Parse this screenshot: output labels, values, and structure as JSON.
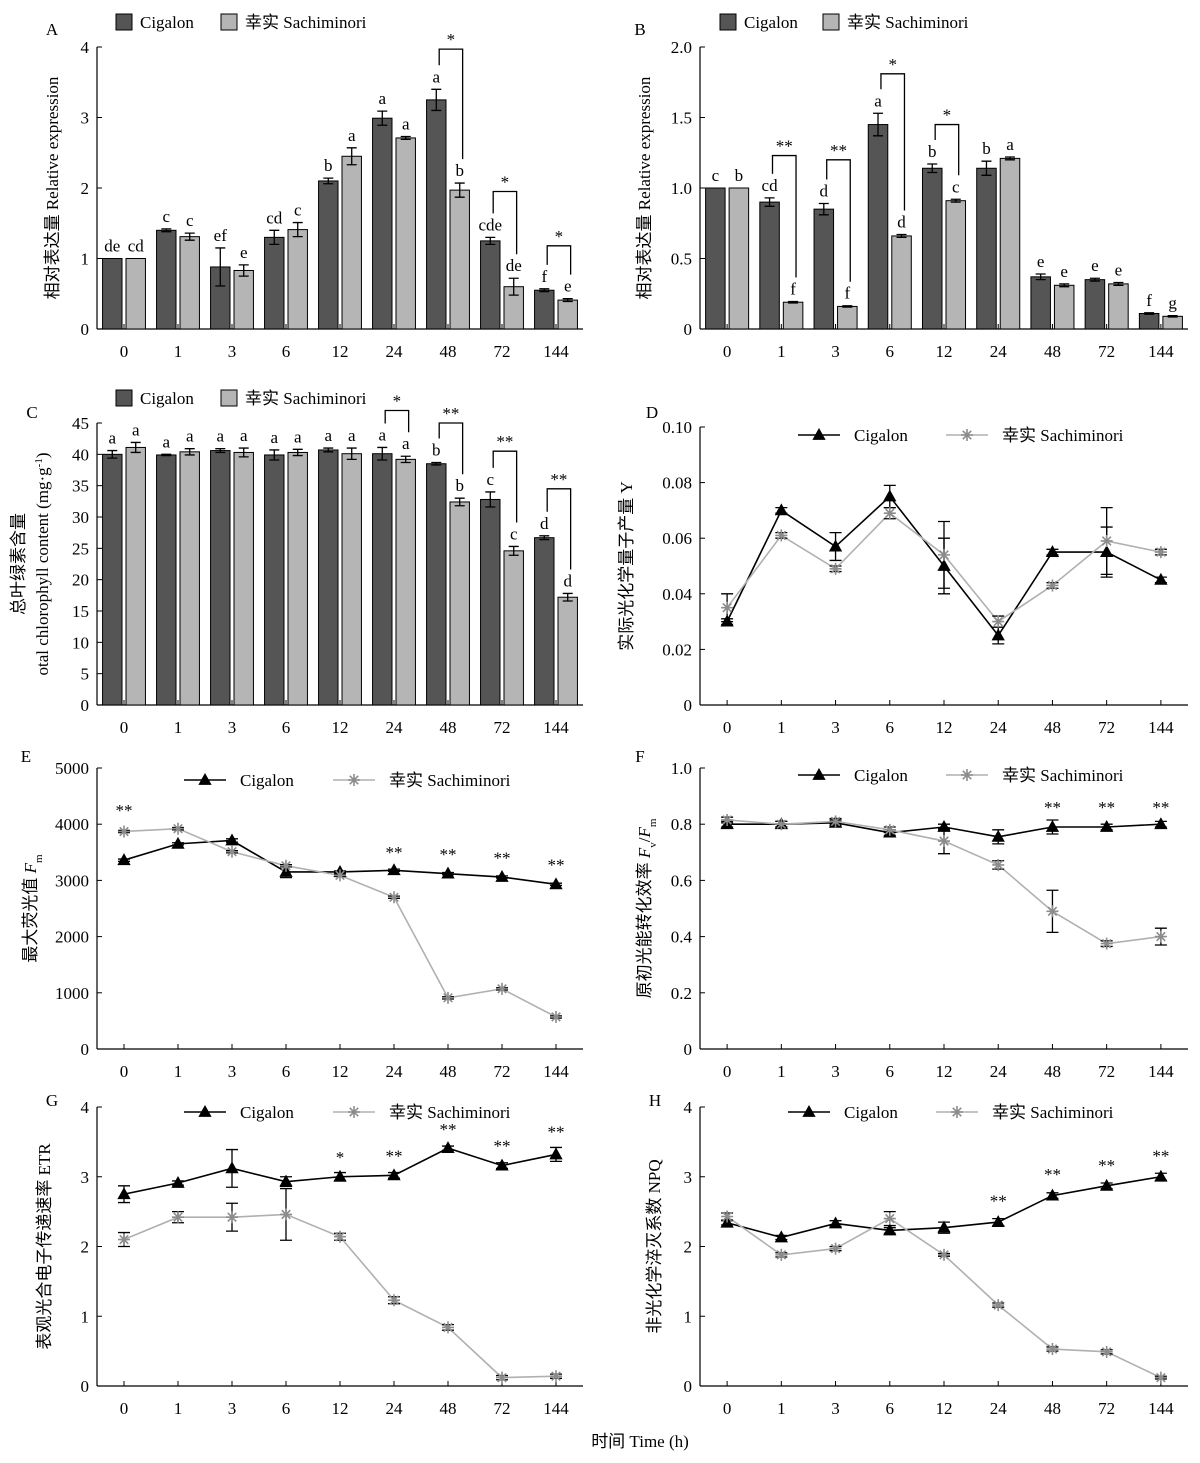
{
  "figure": {
    "xlabel": "时间 Time (h)",
    "colors": {
      "cigalon": "#555555",
      "sachiminori": "#b5b5b5",
      "line_cigalon": "#000000",
      "line_sachiminori": "#8c8c8c"
    }
  },
  "chart_data": [
    {
      "panel": "A",
      "type": "bar",
      "categories": [
        "0",
        "1",
        "3",
        "6",
        "12",
        "24",
        "48",
        "72",
        "144"
      ],
      "ylabel": "相对表达量 Relative expression",
      "ylim": [
        0,
        4
      ],
      "yticks": [
        "0",
        "1",
        "2",
        "3",
        "4"
      ],
      "legend": [
        "Cigalon",
        "幸实 Sachiminori"
      ],
      "series": [
        {
          "name": "Cigalon",
          "values": [
            1.0,
            1.4,
            0.88,
            1.3,
            2.1,
            2.99,
            3.25,
            1.25,
            0.55
          ],
          "errors": [
            0,
            0.02,
            0.27,
            0.1,
            0.04,
            0.1,
            0.15,
            0.05,
            0.02
          ],
          "labels": [
            "de",
            "c",
            "ef",
            "cd",
            "b",
            "a",
            "a",
            "cde",
            "f"
          ]
        },
        {
          "name": "幸实 Sachiminori",
          "values": [
            1.0,
            1.31,
            0.83,
            1.41,
            2.45,
            2.71,
            1.97,
            0.6,
            0.41
          ],
          "errors": [
            0,
            0.05,
            0.08,
            0.1,
            0.12,
            0.02,
            0.1,
            0.12,
            0.02
          ],
          "labels": [
            "cd",
            "c",
            "e",
            "c",
            "a",
            "a",
            "b",
            "de",
            "e"
          ]
        }
      ],
      "significance": [
        {
          "x": "48",
          "label": "*",
          "top": 3.97
        },
        {
          "x": "72",
          "label": "*",
          "top": 1.95
        },
        {
          "x": "144",
          "label": "*",
          "top": 1.18
        }
      ]
    },
    {
      "panel": "B",
      "type": "bar",
      "categories": [
        "0",
        "1",
        "3",
        "6",
        "12",
        "24",
        "48",
        "72",
        "144"
      ],
      "ylabel": "相对表达量 Relative expression",
      "ylim": [
        0,
        2
      ],
      "yticks": [
        "0",
        "0.5",
        "1.0",
        "1.5",
        "2.0"
      ],
      "legend": [
        "Cigalon",
        "幸实 Sachiminori"
      ],
      "series": [
        {
          "name": "Cigalon",
          "values": [
            1.0,
            0.9,
            0.85,
            1.45,
            1.14,
            1.14,
            0.37,
            0.35,
            0.11
          ],
          "errors": [
            0,
            0.03,
            0.04,
            0.08,
            0.03,
            0.05,
            0.02,
            0.01,
            0.005
          ],
          "labels": [
            "c",
            "cd",
            "d",
            "a",
            "b",
            "b",
            "e",
            "e",
            "f"
          ]
        },
        {
          "name": "幸实 Sachiminori",
          "values": [
            1.0,
            0.19,
            0.16,
            0.66,
            0.91,
            1.21,
            0.31,
            0.32,
            0.09
          ],
          "errors": [
            0,
            0.005,
            0.005,
            0.01,
            0.01,
            0.01,
            0.01,
            0.01,
            0.005
          ],
          "labels": [
            "b",
            "f",
            "f",
            "d",
            "c",
            "a",
            "e",
            "e",
            "g"
          ]
        }
      ],
      "significance": [
        {
          "x": "1",
          "label": "**",
          "top": 1.23
        },
        {
          "x": "3",
          "label": "**",
          "top": 1.2
        },
        {
          "x": "6",
          "label": "*",
          "top": 1.81
        },
        {
          "x": "12",
          "label": "*",
          "top": 1.45
        }
      ]
    },
    {
      "panel": "C",
      "type": "bar",
      "categories": [
        "0",
        "1",
        "3",
        "6",
        "12",
        "24",
        "48",
        "72",
        "144"
      ],
      "ylabel": "总叶绿素含量",
      "ylabel2": "otal chlorophyll content (mg·g",
      "ylabel2_sup": "-1",
      "ylabel2_end": ")",
      "ylim": [
        0,
        45
      ],
      "yticks": [
        "0",
        "5",
        "10",
        "15",
        "20",
        "25",
        "30",
        "35",
        "40",
        "45"
      ],
      "legend": [
        "Cigalon",
        "幸实 Sachiminori"
      ],
      "series": [
        {
          "name": "Cigalon",
          "values": [
            40.0,
            39.9,
            40.6,
            39.9,
            40.7,
            40.1,
            38.5,
            32.8,
            26.7
          ],
          "errors": [
            0.6,
            0.1,
            0.3,
            0.8,
            0.3,
            1.0,
            0.2,
            1.2,
            0.3
          ],
          "labels": [
            "a",
            "a",
            "a",
            "a",
            "a",
            "a",
            "b",
            "c",
            "d"
          ]
        },
        {
          "name": "幸实 Sachiminori",
          "values": [
            41.1,
            40.4,
            40.3,
            40.3,
            40.1,
            39.2,
            32.4,
            24.6,
            17.2
          ],
          "errors": [
            0.8,
            0.5,
            0.7,
            0.5,
            0.9,
            0.5,
            0.6,
            0.7,
            0.6
          ],
          "labels": [
            "a",
            "a",
            "a",
            "a",
            "a",
            "a",
            "b",
            "c",
            "d"
          ]
        }
      ],
      "significance": [
        {
          "x": "24",
          "label": "*",
          "top": 47.0
        },
        {
          "x": "48",
          "label": "**",
          "top": 45.0
        },
        {
          "x": "72",
          "label": "**",
          "top": 40.5
        },
        {
          "x": "144",
          "label": "**",
          "top": 34.5
        }
      ]
    },
    {
      "panel": "D",
      "type": "line",
      "categories": [
        "0",
        "1",
        "3",
        "6",
        "12",
        "24",
        "48",
        "72",
        "144"
      ],
      "ylabel": "实际光化学量子产量 Y",
      "ylim": [
        0,
        0.1
      ],
      "yticks": [
        "0",
        "0.02",
        "0.04",
        "0.06",
        "0.08",
        "0.10"
      ],
      "legend": [
        "Cigalon",
        "幸实 Sachiminori"
      ],
      "series": [
        {
          "name": "Cigalon",
          "values": [
            0.03,
            0.07,
            0.057,
            0.075,
            0.05,
            0.025,
            0.055,
            0.055,
            0.045
          ],
          "errors": [
            0.001,
            0.001,
            0.005,
            0.004,
            0.01,
            0.003,
            0.001,
            0.009,
            0.001
          ]
        },
        {
          "name": "幸实 Sachiminori",
          "values": [
            0.035,
            0.061,
            0.049,
            0.069,
            0.054,
            0.03,
            0.043,
            0.059,
            0.055
          ],
          "errors": [
            0.005,
            0.001,
            0.001,
            0.002,
            0.012,
            0.002,
            0.001,
            0.012,
            0.001
          ]
        }
      ],
      "significance": []
    },
    {
      "panel": "E",
      "type": "line",
      "categories": [
        "0",
        "1",
        "3",
        "6",
        "12",
        "24",
        "48",
        "72",
        "144"
      ],
      "ylabel": "最大荧光值",
      "ylabel_var": "F",
      "ylabel_sub": "m",
      "ylim": [
        0,
        5000
      ],
      "yticks": [
        "0",
        "1000",
        "2000",
        "3000",
        "4000",
        "5000"
      ],
      "legend": [
        "Cigalon",
        "幸实 Sachiminori"
      ],
      "series": [
        {
          "name": "Cigalon",
          "values": [
            3360,
            3650,
            3710,
            3150,
            3150,
            3180,
            3120,
            3060,
            2930
          ],
          "errors": [
            20,
            20,
            30,
            100,
            20,
            20,
            20,
            20,
            20
          ]
        },
        {
          "name": "幸实 Sachiminori",
          "values": [
            3870,
            3920,
            3510,
            3260,
            3090,
            2700,
            910,
            1070,
            570
          ],
          "errors": [
            20,
            20,
            20,
            20,
            20,
            20,
            20,
            20,
            20
          ]
        }
      ],
      "significance": [
        {
          "x": "0",
          "label": "**",
          "above": 4150
        },
        {
          "x": "24",
          "label": "**",
          "above": 3400
        },
        {
          "x": "48",
          "label": "**",
          "above": 3360
        },
        {
          "x": "72",
          "label": "**",
          "above": 3300
        },
        {
          "x": "144",
          "label": "**",
          "above": 3180
        }
      ]
    },
    {
      "panel": "F",
      "type": "line",
      "categories": [
        "0",
        "1",
        "3",
        "6",
        "12",
        "24",
        "48",
        "72",
        "144"
      ],
      "ylabel": "原初光能转化效率",
      "ylabel_var": "F",
      "ylabel_sub": "v",
      "ylabel_var2": "F",
      "ylabel_sub2": "m",
      "ylim": [
        0,
        1
      ],
      "yticks": [
        "0",
        "0.2",
        "0.4",
        "0.6",
        "0.8",
        "1.0"
      ],
      "legend": [
        "Cigalon",
        "幸实 Sachiminori"
      ],
      "series": [
        {
          "name": "Cigalon",
          "values": [
            0.8,
            0.8,
            0.805,
            0.77,
            0.79,
            0.755,
            0.79,
            0.79,
            0.8
          ],
          "errors": [
            0.01,
            0.01,
            0.01,
            0.01,
            0.01,
            0.025,
            0.025,
            0.01,
            0.01
          ]
        },
        {
          "name": "幸实 Sachiminori",
          "values": [
            0.815,
            0.8,
            0.81,
            0.78,
            0.74,
            0.655,
            0.49,
            0.375,
            0.4
          ],
          "errors": [
            0.01,
            0.01,
            0.01,
            0.01,
            0.045,
            0.015,
            0.075,
            0.01,
            0.03
          ]
        }
      ],
      "significance": [
        {
          "x": "48",
          "label": "**",
          "above": 0.84
        },
        {
          "x": "72",
          "label": "**",
          "above": 0.84
        },
        {
          "x": "144",
          "label": "**",
          "above": 0.84
        }
      ]
    },
    {
      "panel": "G",
      "type": "line",
      "categories": [
        "0",
        "1",
        "3",
        "6",
        "12",
        "24",
        "48",
        "72",
        "144"
      ],
      "ylabel": "表观光合电子传递速率 ETR",
      "ylim": [
        0,
        4
      ],
      "yticks": [
        "0",
        "1",
        "2",
        "3",
        "4"
      ],
      "legend": [
        "Cigalon",
        "幸实 Sachiminori"
      ],
      "series": [
        {
          "name": "Cigalon",
          "values": [
            2.75,
            2.91,
            3.12,
            2.93,
            3.0,
            3.02,
            3.41,
            3.16,
            3.32
          ],
          "errors": [
            0.12,
            0.03,
            0.27,
            0.07,
            0.06,
            0.04,
            0.03,
            0.04,
            0.1
          ]
        },
        {
          "name": "幸实 Sachiminori",
          "values": [
            2.1,
            2.42,
            2.42,
            2.46,
            2.14,
            1.23,
            0.84,
            0.12,
            0.14
          ],
          "errors": [
            0.1,
            0.08,
            0.2,
            0.37,
            0.05,
            0.05,
            0.04,
            0.03,
            0.03
          ]
        }
      ],
      "significance": [
        {
          "x": "12",
          "label": "*",
          "above": 3.2
        },
        {
          "x": "24",
          "label": "**",
          "above": 3.22
        },
        {
          "x": "48",
          "label": "**",
          "above": 3.6
        },
        {
          "x": "72",
          "label": "**",
          "above": 3.36
        },
        {
          "x": "144",
          "label": "**",
          "above": 3.56
        }
      ]
    },
    {
      "panel": "H",
      "type": "line",
      "categories": [
        "0",
        "1",
        "3",
        "6",
        "12",
        "24",
        "48",
        "72",
        "144"
      ],
      "ylabel": "非光化学淬灭系数 NPQ",
      "ylim": [
        0,
        4
      ],
      "yticks": [
        "0",
        "1",
        "2",
        "3",
        "4"
      ],
      "legend": [
        "Cigalon",
        "幸实 Sachiminori"
      ],
      "series": [
        {
          "name": "Cigalon",
          "values": [
            2.34,
            2.13,
            2.33,
            2.23,
            2.27,
            2.35,
            2.73,
            2.87,
            3.0
          ],
          "errors": [
            0.03,
            0.03,
            0.04,
            0.04,
            0.08,
            0.05,
            0.04,
            0.04,
            0.05
          ]
        },
        {
          "name": "幸实 Sachiminori",
          "values": [
            2.43,
            1.88,
            1.97,
            2.4,
            1.88,
            1.16,
            0.53,
            0.49,
            0.12
          ],
          "errors": [
            0.05,
            0.03,
            0.03,
            0.1,
            0.02,
            0.03,
            0.03,
            0.03,
            0.02
          ]
        }
      ],
      "significance": [
        {
          "x": "24",
          "label": "**",
          "above": 2.57
        },
        {
          "x": "48",
          "label": "**",
          "above": 2.95
        },
        {
          "x": "72",
          "label": "**",
          "above": 3.08
        },
        {
          "x": "144",
          "label": "**",
          "above": 3.22
        }
      ]
    }
  ]
}
